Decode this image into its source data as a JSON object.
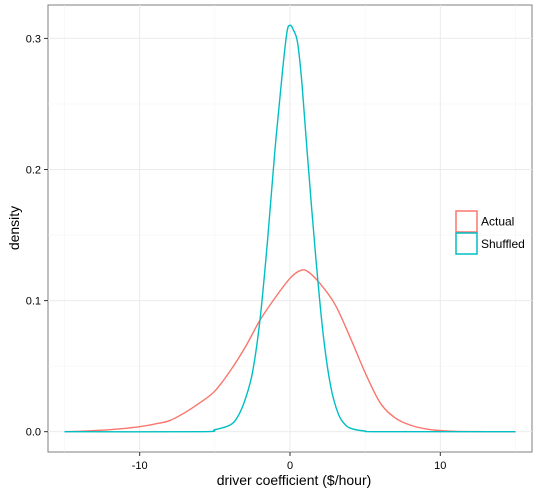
{
  "chart_data": {
    "type": "line",
    "xlabel": "driver coefficient ($/hour)",
    "ylabel": "density",
    "xlim": [
      -16.1,
      16.1
    ],
    "ylim": [
      -0.0155,
      0.3255
    ],
    "x_ticks": [
      -10,
      0,
      10
    ],
    "x_tick_labels": [
      "-10",
      "0",
      "10"
    ],
    "y_ticks": [
      0.0,
      0.1,
      0.2,
      0.3
    ],
    "y_tick_labels": [
      "0.0",
      "0.1",
      "0.2",
      "0.3"
    ],
    "grid": true,
    "legend_position": "right",
    "series": [
      {
        "name": "Actual",
        "color": "#F8766D",
        "points": [
          [
            -15,
            0.0
          ],
          [
            -14,
            0.0003
          ],
          [
            -13,
            0.0008
          ],
          [
            -12,
            0.0015
          ],
          [
            -11,
            0.0025
          ],
          [
            -10,
            0.0038
          ],
          [
            -9,
            0.0058
          ],
          [
            -8,
            0.0085
          ],
          [
            -7,
            0.0145
          ],
          [
            -6,
            0.022
          ],
          [
            -5,
            0.031
          ],
          [
            -4,
            0.046
          ],
          [
            -3,
            0.064
          ],
          [
            -2,
            0.085
          ],
          [
            -1,
            0.102
          ],
          [
            0,
            0.117
          ],
          [
            0.7,
            0.123
          ],
          [
            1.2,
            0.122
          ],
          [
            2,
            0.113
          ],
          [
            3,
            0.097
          ],
          [
            4,
            0.072
          ],
          [
            5,
            0.045
          ],
          [
            6,
            0.022
          ],
          [
            7,
            0.0105
          ],
          [
            8,
            0.005
          ],
          [
            9,
            0.0022
          ],
          [
            10,
            0.0008
          ],
          [
            11,
            0.0003
          ],
          [
            12,
            0.0001
          ],
          [
            13,
            0.0
          ],
          [
            15,
            0.0
          ]
        ]
      },
      {
        "name": "Shuffled",
        "color": "#00BFC4",
        "points": [
          [
            -15,
            0.0
          ],
          [
            -6,
            0.0
          ],
          [
            -5,
            0.0015
          ],
          [
            -4,
            0.005
          ],
          [
            -3.5,
            0.011
          ],
          [
            -3,
            0.024
          ],
          [
            -2.5,
            0.045
          ],
          [
            -2,
            0.085
          ],
          [
            -1.5,
            0.145
          ],
          [
            -1,
            0.215
          ],
          [
            -0.5,
            0.275
          ],
          [
            -0.2,
            0.305
          ],
          [
            0,
            0.31
          ],
          [
            0.2,
            0.307
          ],
          [
            0.5,
            0.297
          ],
          [
            0.8,
            0.265
          ],
          [
            1.2,
            0.205
          ],
          [
            1.7,
            0.135
          ],
          [
            2.2,
            0.075
          ],
          [
            2.7,
            0.035
          ],
          [
            3.2,
            0.014
          ],
          [
            3.7,
            0.005
          ],
          [
            4.2,
            0.002
          ],
          [
            5,
            0.0005
          ],
          [
            6,
            0.0
          ],
          [
            15,
            0.0
          ]
        ]
      }
    ]
  }
}
